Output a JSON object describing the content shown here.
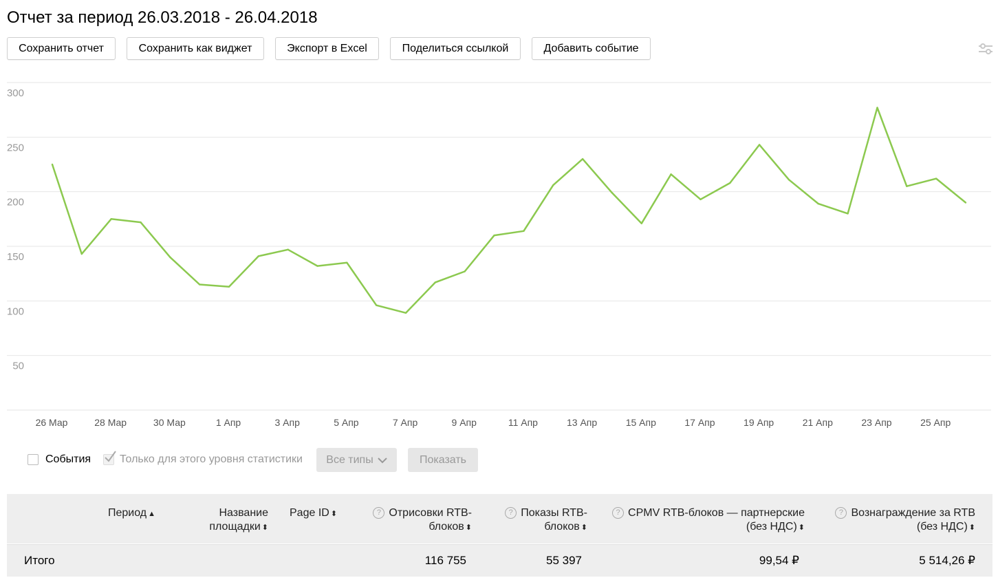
{
  "page": {
    "title": "Отчет за период 26.03.2018 - 26.04.2018"
  },
  "toolbar": {
    "save_report": "Сохранить отчет",
    "save_widget": "Сохранить как виджет",
    "export_excel": "Экспорт в Excel",
    "share_link": "Поделиться ссылкой",
    "add_event": "Добавить событие"
  },
  "chart_data": {
    "type": "line",
    "y_ticks": [
      "50",
      "100",
      "150",
      "200",
      "250",
      "300"
    ],
    "ylim": [
      0,
      300
    ],
    "x_ticks": [
      "26 Мар",
      "28 Мар",
      "30 Мар",
      "1 Апр",
      "3 Апр",
      "5 Апр",
      "7 Апр",
      "9 Апр",
      "11 Апр",
      "13 Апр",
      "15 Апр",
      "17 Апр",
      "19 Апр",
      "21 Апр",
      "23 Апр",
      "25 Апр"
    ],
    "grid": true,
    "line_color": "#8cc94f",
    "series": [
      {
        "x": [
          "26.03.2018",
          "27.03.2018",
          "28.03.2018",
          "29.03.2018",
          "30.03.2018",
          "31.03.2018",
          "01.04.2018",
          "02.04.2018",
          "03.04.2018",
          "04.04.2018",
          "05.04.2018",
          "06.04.2018",
          "07.04.2018",
          "08.04.2018",
          "09.04.2018",
          "10.04.2018",
          "11.04.2018",
          "12.04.2018",
          "13.04.2018",
          "14.04.2018",
          "15.04.2018",
          "16.04.2018",
          "17.04.2018",
          "18.04.2018",
          "19.04.2018",
          "20.04.2018",
          "21.04.2018",
          "22.04.2018",
          "23.04.2018",
          "24.04.2018",
          "25.04.2018",
          "26.04.2018"
        ],
        "values": [
          225,
          143,
          175,
          172,
          140,
          115,
          113,
          141,
          147,
          132,
          135,
          96,
          89,
          117,
          127,
          160,
          164,
          206,
          230,
          199,
          171,
          216,
          193,
          208,
          243,
          211,
          189,
          180,
          277,
          205,
          212,
          190
        ]
      }
    ]
  },
  "controls": {
    "events_label": "События",
    "level_only_label": "Только для этого уровня статистики",
    "all_types": "Все типы",
    "show": "Показать"
  },
  "table": {
    "headers": {
      "period": "Период",
      "site_name_1": "Название",
      "site_name_2": "площадки",
      "page_id": "Page ID",
      "rtb_renders_1": "Отрисовки RTB-",
      "rtb_renders_2": "блоков",
      "rtb_shows_1": "Показы RTB-",
      "rtb_shows_2": "блоков",
      "cpmv_1": "CPMV RTB-блоков — партнерские",
      "cpmv_2": "(без НДС)",
      "reward_1": "Вознаграждение за RTB",
      "reward_2": "(без НДС)"
    },
    "total": {
      "label": "Итого",
      "rtb_renders": "116 755",
      "rtb_shows": "55 397",
      "cpmv": "99,54 ₽",
      "reward": "5 514,26 ₽"
    }
  }
}
